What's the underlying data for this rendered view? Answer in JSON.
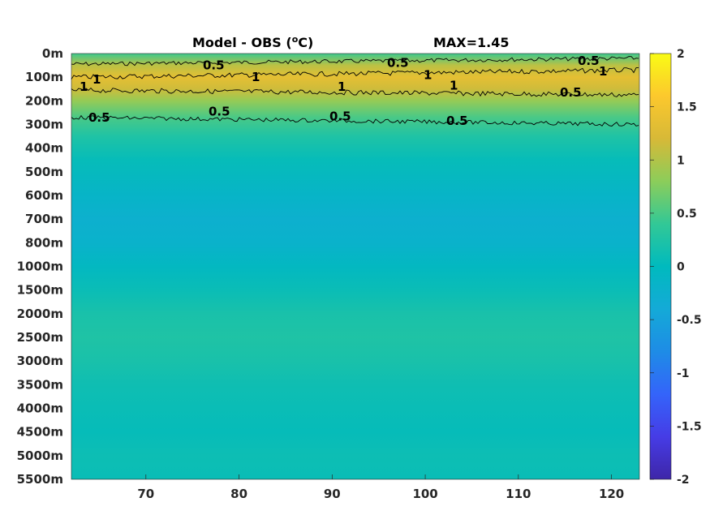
{
  "chart_data": {
    "type": "heatmap",
    "title": "Model - OBS (",
    "title_unit": "C)",
    "title_degree": "o",
    "max_label": "MAX=1.45",
    "x_ticks": [
      70,
      80,
      90,
      100,
      110,
      120
    ],
    "x_range": [
      62,
      123
    ],
    "depth_labels": [
      "0m",
      "100m",
      "200m",
      "300m",
      "400m",
      "500m",
      "600m",
      "700m",
      "800m",
      "1000m",
      "1500m",
      "2000m",
      "2500m",
      "3000m",
      "3500m",
      "4000m",
      "4500m",
      "5000m",
      "5500m"
    ],
    "colorbar": {
      "colormap": "parula",
      "range": [
        -2,
        2
      ],
      "ticks": [
        2,
        1.5,
        1,
        0.5,
        0,
        -0.5,
        -1,
        -1.5,
        -2
      ]
    },
    "depth_profile": [
      {
        "depth_index": 0.0,
        "value": 0.45
      },
      {
        "depth_index": 0.5,
        "value": 1.05
      },
      {
        "depth_index": 1.0,
        "value": 1.35
      },
      {
        "depth_index": 1.5,
        "value": 1.15
      },
      {
        "depth_index": 2.0,
        "value": 0.85
      },
      {
        "depth_index": 2.7,
        "value": 0.5
      },
      {
        "depth_index": 3.5,
        "value": 0.25
      },
      {
        "depth_index": 4.5,
        "value": 0.05
      },
      {
        "depth_index": 6.0,
        "value": -0.15
      },
      {
        "depth_index": 7.0,
        "value": -0.25
      },
      {
        "depth_index": 8.0,
        "value": -0.2
      },
      {
        "depth_index": 9.0,
        "value": -0.05
      },
      {
        "depth_index": 10.0,
        "value": 0.08
      },
      {
        "depth_index": 11.0,
        "value": 0.2
      },
      {
        "depth_index": 12.0,
        "value": 0.25
      },
      {
        "depth_index": 13.0,
        "value": 0.2
      },
      {
        "depth_index": 14.0,
        "value": 0.12
      },
      {
        "depth_index": 15.0,
        "value": 0.08
      },
      {
        "depth_index": 16.0,
        "value": 0.05
      },
      {
        "depth_index": 17.0,
        "value": 0.1
      },
      {
        "depth_index": 18.0,
        "value": 0.08
      }
    ],
    "contour_levels": [
      0.5,
      1
    ],
    "contour_labels": [
      "0.5",
      "0.5",
      "0.5",
      "1",
      "1",
      "1",
      "1",
      "1",
      "1",
      "1",
      "0.5",
      "0.5",
      "0.5",
      "0.5",
      "0.5"
    ]
  }
}
